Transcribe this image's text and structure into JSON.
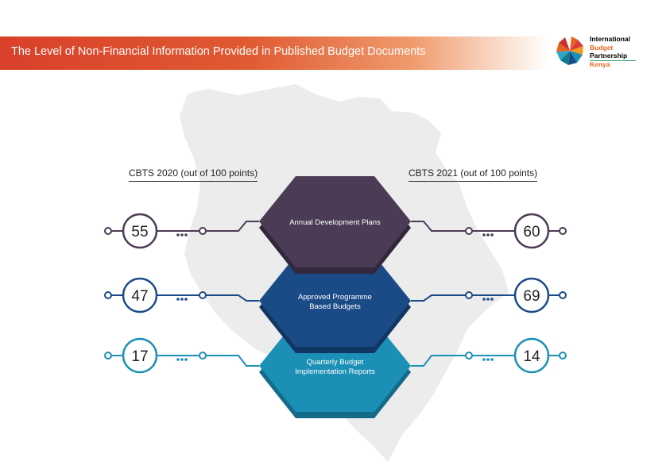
{
  "header": {
    "title": "The Level of Non-Financial Information Provided in Published Budget Documents",
    "logo_lines": [
      "International",
      "Budget",
      "Partnership",
      "Kenya"
    ],
    "logo_colors": [
      "#1a1a2e",
      "#e8641e",
      "#1a1a2e",
      "#e8641e"
    ]
  },
  "columns": {
    "left_heading": "CBTS 2020 (out of 100 points)",
    "right_heading": "CBTS 2021 (out of 100 points)"
  },
  "chart_data": {
    "type": "table",
    "series": [
      {
        "name": "CBTS 2020 (out of 100 points)",
        "values": [
          55,
          47,
          17
        ]
      },
      {
        "name": "CBTS 2021 (out of 100 points)",
        "values": [
          60,
          69,
          14
        ]
      }
    ],
    "categories": [
      [
        "Annual Development Plans"
      ],
      [
        "Approved Programme",
        "Based Budgets"
      ],
      [
        "Quarterly Budget",
        "Implementation Reports"
      ]
    ],
    "colors": [
      "#4b3b55",
      "#1b4b87",
      "#1b8fb5"
    ],
    "dark_colors": [
      "#33283b",
      "#123663",
      "#136b88"
    ],
    "text_color": "#222222"
  }
}
